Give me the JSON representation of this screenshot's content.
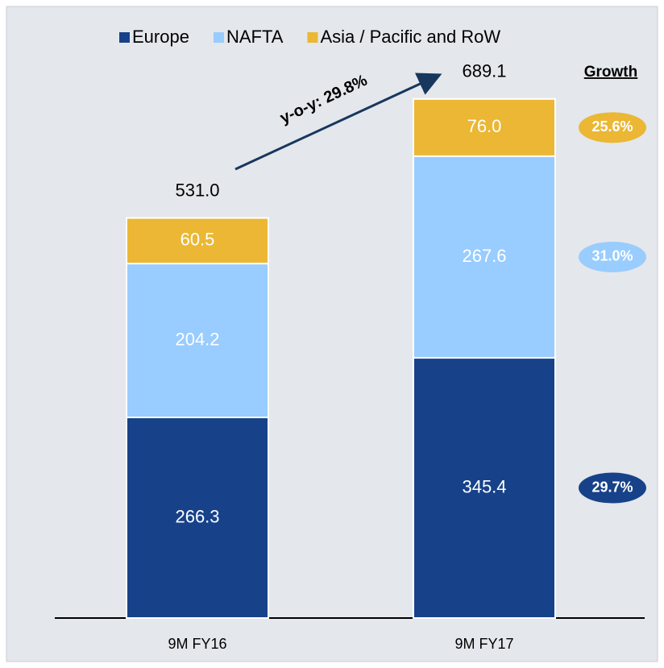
{
  "chart_data": {
    "type": "stacked_bar",
    "categories": [
      "9M FY16",
      "9M FY17"
    ],
    "series": [
      {
        "name": "Europe",
        "color": "#17428a",
        "values": [
          266.3,
          345.4
        ],
        "growth": "29.7%"
      },
      {
        "name": "NAFTA",
        "color": "#99ccff",
        "values": [
          204.2,
          267.6
        ],
        "growth": "31.0%"
      },
      {
        "name": "Asia / Pacific and RoW",
        "color": "#ebb734",
        "values": [
          60.5,
          76.0
        ],
        "value_labels": [
          "60.5",
          "76.0"
        ],
        "growth": "25.6%"
      }
    ],
    "totals": {
      "values": [
        531.0,
        689.1
      ],
      "value_labels": [
        "531.0",
        "689.1"
      ]
    },
    "growth_title": "Growth",
    "annotation": "y-o-y: 29.8%",
    "legend": "top"
  }
}
